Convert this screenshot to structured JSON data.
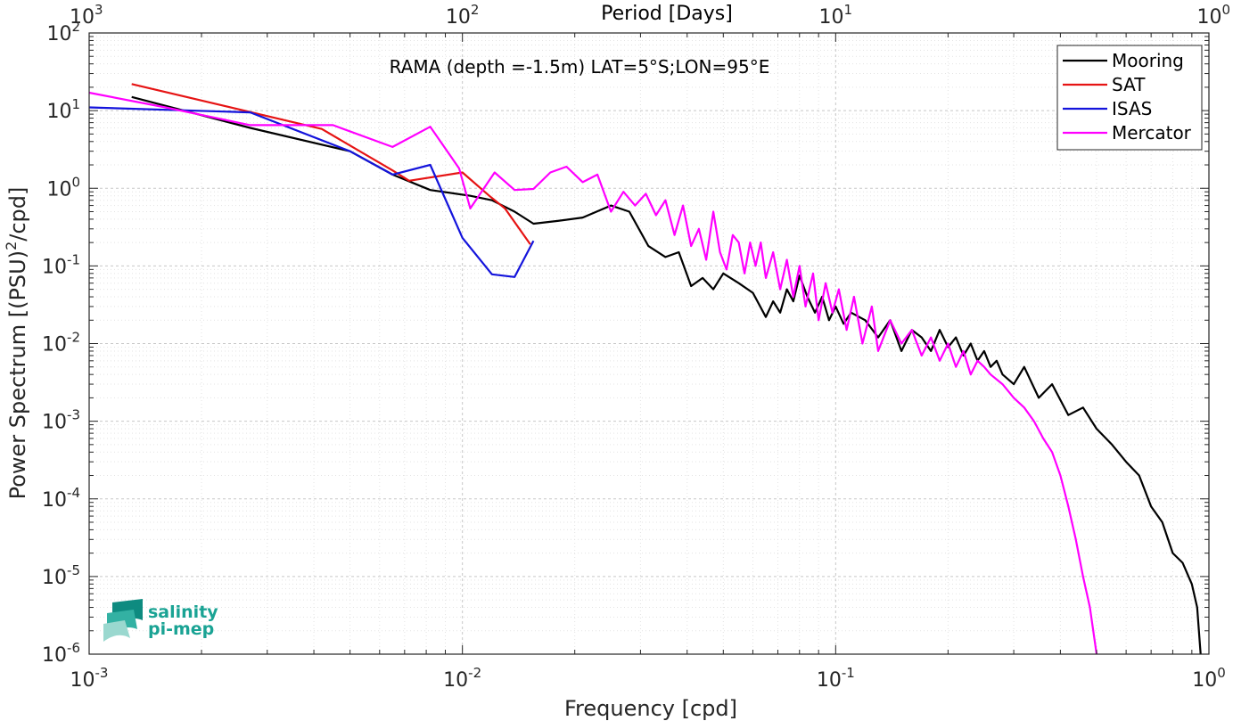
{
  "chart_data": {
    "type": "line",
    "title": "RAMA (depth =-1.5m) LAT=5°S;LON=95°E",
    "xlabel": "Frequency [cpd]",
    "ylabel": "Power Spectrum [(PSU)^2/cpd]",
    "top_axis_label": "Period [Days]",
    "x_scale": "log",
    "y_scale": "log",
    "xlim": [
      0.001,
      1
    ],
    "ylim": [
      1e-06,
      100
    ],
    "grid": true,
    "legend_position": "top-right",
    "x_ticks": [
      {
        "mantissa": "10",
        "exp": "-3"
      },
      {
        "mantissa": "10",
        "exp": "-2"
      },
      {
        "mantissa": "10",
        "exp": "-1"
      },
      {
        "mantissa": "10",
        "exp": "0"
      }
    ],
    "top_ticks": [
      {
        "mantissa": "10",
        "exp": "3"
      },
      {
        "mantissa": "10",
        "exp": "2"
      },
      {
        "mantissa": "10",
        "exp": "1"
      },
      {
        "mantissa": "10",
        "exp": "0"
      }
    ],
    "y_ticks": [
      {
        "mantissa": "10",
        "exp": "2"
      },
      {
        "mantissa": "10",
        "exp": "1"
      },
      {
        "mantissa": "10",
        "exp": "0"
      },
      {
        "mantissa": "10",
        "exp": "-1"
      },
      {
        "mantissa": "10",
        "exp": "-2"
      },
      {
        "mantissa": "10",
        "exp": "-3"
      },
      {
        "mantissa": "10",
        "exp": "-4"
      },
      {
        "mantissa": "10",
        "exp": "-5"
      },
      {
        "mantissa": "10",
        "exp": "-6"
      }
    ],
    "series": [
      {
        "name": "Mooring",
        "color": "#000000",
        "x": [
          0.0013,
          0.0027,
          0.005,
          0.0065,
          0.0082,
          0.0105,
          0.012,
          0.0138,
          0.0155,
          0.018,
          0.021,
          0.025,
          0.028,
          0.0315,
          0.035,
          0.038,
          0.041,
          0.044,
          0.047,
          0.05,
          0.055,
          0.06,
          0.065,
          0.068,
          0.071,
          0.074,
          0.077,
          0.08,
          0.084,
          0.088,
          0.092,
          0.096,
          0.1,
          0.105,
          0.11,
          0.12,
          0.13,
          0.14,
          0.15,
          0.16,
          0.17,
          0.18,
          0.19,
          0.2,
          0.21,
          0.22,
          0.23,
          0.24,
          0.25,
          0.26,
          0.27,
          0.28,
          0.3,
          0.32,
          0.35,
          0.38,
          0.42,
          0.46,
          0.5,
          0.55,
          0.6,
          0.65,
          0.7,
          0.75,
          0.8,
          0.85,
          0.9,
          0.93,
          0.95
        ],
        "values": [
          15,
          6,
          3,
          1.5,
          0.95,
          0.8,
          0.7,
          0.5,
          0.35,
          0.38,
          0.42,
          0.6,
          0.5,
          0.18,
          0.13,
          0.15,
          0.055,
          0.07,
          0.05,
          0.08,
          0.06,
          0.045,
          0.022,
          0.035,
          0.025,
          0.05,
          0.035,
          0.075,
          0.04,
          0.025,
          0.04,
          0.02,
          0.03,
          0.018,
          0.025,
          0.02,
          0.012,
          0.02,
          0.008,
          0.015,
          0.012,
          0.008,
          0.015,
          0.009,
          0.012,
          0.007,
          0.01,
          0.006,
          0.008,
          0.005,
          0.006,
          0.004,
          0.003,
          0.005,
          0.002,
          0.003,
          0.0012,
          0.0015,
          0.0008,
          0.0005,
          0.0003,
          0.0002,
          8e-05,
          5e-05,
          2e-05,
          1.5e-05,
          8e-06,
          4e-06,
          1e-06
        ]
      },
      {
        "name": "SAT",
        "color": "#e61414",
        "x": [
          0.0013,
          0.0042,
          0.0065,
          0.0072,
          0.01,
          0.0118,
          0.013,
          0.0152
        ],
        "values": [
          22,
          5.8,
          1.7,
          1.25,
          1.6,
          0.8,
          0.55,
          0.19
        ]
      },
      {
        "name": "ISAS",
        "color": "#1414dc",
        "x": [
          0.001,
          0.0027,
          0.005,
          0.0065,
          0.0082,
          0.01,
          0.012,
          0.0138,
          0.0155
        ],
        "values": [
          11,
          9.5,
          3,
          1.5,
          2,
          0.23,
          0.078,
          0.072,
          0.21
        ]
      },
      {
        "name": "Mercator",
        "color": "#ff00ff",
        "x": [
          0.001,
          0.0016,
          0.0027,
          0.0045,
          0.0065,
          0.0082,
          0.0098,
          0.0105,
          0.0122,
          0.0138,
          0.0155,
          0.0172,
          0.019,
          0.021,
          0.023,
          0.025,
          0.027,
          0.029,
          0.031,
          0.033,
          0.035,
          0.037,
          0.039,
          0.041,
          0.043,
          0.045,
          0.047,
          0.049,
          0.051,
          0.053,
          0.055,
          0.057,
          0.059,
          0.061,
          0.063,
          0.065,
          0.068,
          0.071,
          0.074,
          0.077,
          0.08,
          0.083,
          0.087,
          0.09,
          0.094,
          0.098,
          0.102,
          0.107,
          0.112,
          0.118,
          0.125,
          0.13,
          0.14,
          0.15,
          0.16,
          0.17,
          0.18,
          0.19,
          0.2,
          0.21,
          0.22,
          0.23,
          0.24,
          0.25,
          0.26,
          0.28,
          0.3,
          0.32,
          0.34,
          0.36,
          0.38,
          0.4,
          0.42,
          0.44,
          0.46,
          0.48,
          0.5
        ],
        "values": [
          17,
          11,
          6.5,
          6.5,
          3.4,
          6.2,
          1.8,
          0.55,
          1.6,
          0.95,
          0.98,
          1.6,
          1.9,
          1.2,
          1.5,
          0.5,
          0.9,
          0.6,
          0.85,
          0.45,
          0.7,
          0.25,
          0.6,
          0.18,
          0.3,
          0.12,
          0.5,
          0.15,
          0.09,
          0.25,
          0.2,
          0.08,
          0.2,
          0.1,
          0.2,
          0.07,
          0.15,
          0.05,
          0.12,
          0.04,
          0.1,
          0.03,
          0.08,
          0.02,
          0.06,
          0.025,
          0.05,
          0.015,
          0.04,
          0.01,
          0.03,
          0.008,
          0.02,
          0.01,
          0.015,
          0.007,
          0.012,
          0.006,
          0.01,
          0.005,
          0.008,
          0.004,
          0.006,
          0.005,
          0.004,
          0.003,
          0.002,
          0.0015,
          0.001,
          0.0006,
          0.0004,
          0.0002,
          8e-05,
          3e-05,
          1e-05,
          4e-06,
          1e-06
        ]
      }
    ]
  },
  "logo": {
    "line1": "salinity",
    "line2": "pi-mep",
    "color": "#1aa394"
  }
}
